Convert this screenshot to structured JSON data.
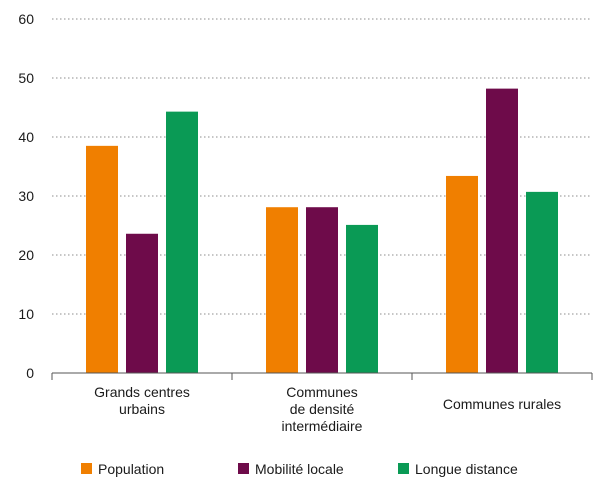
{
  "chart_data": {
    "type": "bar",
    "categories": [
      [
        "Grands centres",
        "urbains"
      ],
      [
        "Communes",
        "de densité",
        "intermédiaire"
      ],
      [
        "Communes rurales"
      ]
    ],
    "series": [
      {
        "name": "Population",
        "color": "#f07f00",
        "values": [
          38.5,
          28.1,
          33.4
        ]
      },
      {
        "name": "Mobilité locale",
        "color": "#6e0b4a",
        "values": [
          23.6,
          28.1,
          48.2
        ]
      },
      {
        "name": "Longue distance",
        "color": "#0a9a55",
        "values": [
          44.3,
          25.1,
          30.7
        ]
      }
    ],
    "yticks": [
      "0",
      "10",
      "20",
      "30",
      "40",
      "50",
      "60"
    ],
    "ylim": [
      0,
      60
    ],
    "grid": true,
    "legend_position": "bottom"
  }
}
